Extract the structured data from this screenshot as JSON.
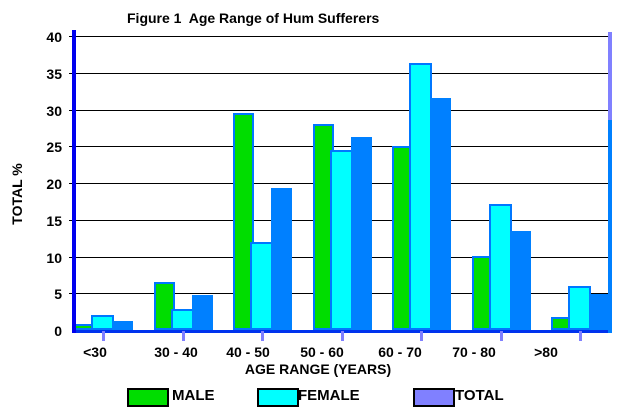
{
  "title": "Figure 1  Age Range of Hum Sufferers",
  "chart_data": {
    "type": "bar",
    "title": "Figure 1  Age Range of Hum Sufferers",
    "categories": [
      "<30",
      "30 - 40",
      "40 - 50",
      "50 - 60",
      "60 - 70",
      "70 - 80",
      ">80"
    ],
    "series": [
      {
        "name": "MALE",
        "color": "#00dd00",
        "legend_color": "#00dd00",
        "values": [
          0.8,
          6.5,
          29.5,
          28.0,
          25.0,
          10.0,
          1.8
        ]
      },
      {
        "name": "FEMALE",
        "color": "#00ffff",
        "legend_color": "#00ffff",
        "values": [
          2.0,
          2.8,
          12.0,
          24.5,
          36.3,
          17.2,
          6.0
        ]
      },
      {
        "name": "TOTAL",
        "color": "#0080ff",
        "legend_color": "#8080ff",
        "values": [
          1.2,
          4.7,
          19.3,
          26.3,
          31.5,
          13.5,
          4.9
        ]
      }
    ],
    "xlabel": "AGE RANGE (YEARS)",
    "ylabel": "TOTAL %",
    "ylim": [
      0,
      40
    ],
    "ytick_step": 5,
    "yticks": [
      "0",
      "5",
      "10",
      "15",
      "20",
      "25",
      "30",
      "35",
      "40"
    ],
    "grid": true,
    "legend_position": "bottom",
    "colors": {
      "axis": "#0000ee",
      "baseline": "#0033ee",
      "bar_border": "#0077ff",
      "frame_right_top": "#8080ff",
      "frame_right_bottom": "#0080ff",
      "xtick": "#8080ff",
      "gridline": "#000000"
    }
  }
}
